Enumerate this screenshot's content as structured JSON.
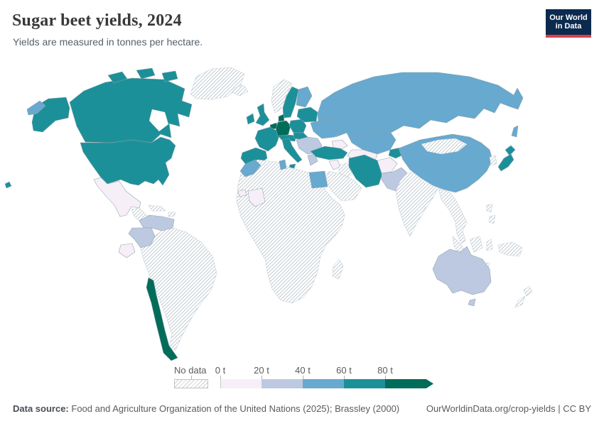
{
  "header": {
    "title": "Sugar beet yields, 2024",
    "subtitle": "Yields are measured in tonnes per hectare."
  },
  "logo": {
    "line1": "Our World",
    "line2": "in Data",
    "bg": "#0b2a4e",
    "accent": "#d8404d"
  },
  "legend": {
    "no_data_label": "No data",
    "bins": [
      {
        "label": "0 t",
        "range": "0-20",
        "color": "#f6eff7"
      },
      {
        "label": "20 t",
        "range": "20-40",
        "color": "#bdc9e1"
      },
      {
        "label": "40 t",
        "range": "40-60",
        "color": "#67a9cf"
      },
      {
        "label": "60 t",
        "range": "60-80",
        "color": "#1c9099"
      },
      {
        "label": "80 t",
        "range": "80+",
        "color": "#016c59"
      }
    ]
  },
  "footer": {
    "source_label": "Data source:",
    "source_text": "Food and Agriculture Organization of the United Nations (2025); Brassley (2000)",
    "right_text": "OurWorldinData.org/crop-yields | CC BY"
  },
  "chart_data": {
    "type": "choropleth-map",
    "title": "Sugar beet yields, 2024",
    "unit": "tonnes per hectare",
    "legend_position": "bottom",
    "bin_colors": {
      "0-20": "#f6eff7",
      "20-40": "#bdc9e1",
      "40-60": "#67a9cf",
      "60-80": "#1c9099",
      "80+": "#016c59"
    },
    "no_data_style": "hatched",
    "regions": {
      "greenland": "no-data",
      "canada": "60-80",
      "united-states": "60-80",
      "mexico": "0-20",
      "central-america": "no-data",
      "cuba": "no-data",
      "hispaniola": "no-data",
      "venezuela": "20-40",
      "colombia": "20-40",
      "ecuador": "0-20",
      "chile": "80+",
      "south-america-other": "no-data",
      "iceland": "no-data",
      "norway": "no-data",
      "sweden": "60-80",
      "finland": "40-60",
      "denmark": "80+",
      "ireland": "60-80",
      "united-kingdom": "60-80",
      "benelux": "80+",
      "germany": "80+",
      "france": "60-80",
      "spain-portugal": "60-80",
      "italy": "60-80",
      "switzerland-austria": "60-80",
      "czech-slovakia": "60-80",
      "poland": "60-80",
      "baltics-belarus": "60-80",
      "balkans": "20-40",
      "greece": "20-40",
      "ukraine": "40-60",
      "russia": "40-60",
      "kazakhstan": "40-60",
      "uzbekistan-turkmenistan": "0-20",
      "kyrgyzstan": "60-80",
      "caucasus": "0-20",
      "turkey": "60-80",
      "syria": "0-20",
      "iraq": "no-data",
      "iran": "60-80",
      "arabian-peninsula": "no-data",
      "afghanistan": "0-20",
      "pakistan": "20-40",
      "india": "no-data",
      "china": "40-60",
      "mongolia": "no-data",
      "south-korea": "no-data",
      "japan": "60-80",
      "southeast-asia": "no-data",
      "philippines": "no-data",
      "indonesia": "no-data",
      "new-guinea": "no-data",
      "morocco": "40-60",
      "tunisia": "40-60",
      "egypt": "40-60",
      "mali": "0-20",
      "senegal": "0-20",
      "africa-other": "no-data",
      "madagascar": "no-data",
      "australia": "20-40",
      "new-zealand": "no-data"
    }
  }
}
